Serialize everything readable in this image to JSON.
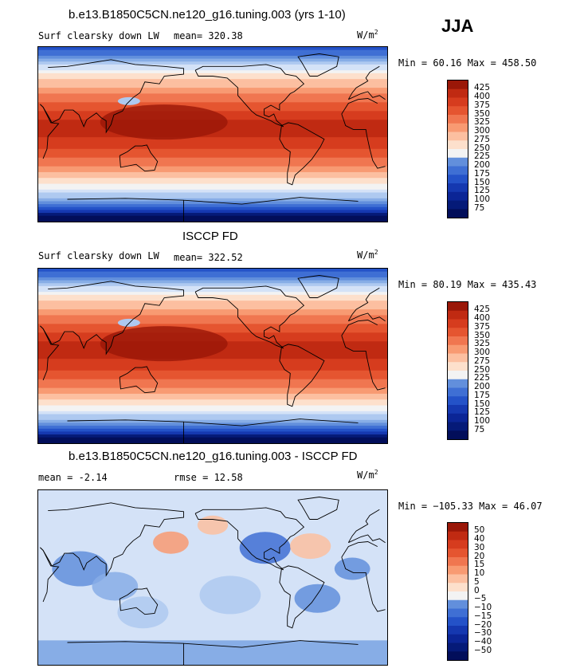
{
  "season": "JJA",
  "colors": {
    "warm": [
      "#fde0cc",
      "#fcbfa0",
      "#f89a72",
      "#f07650",
      "#e55530",
      "#d63c1e",
      "#c02a12",
      "#9a1708",
      "#7a0d04"
    ],
    "neutral": "#f3f3f3",
    "cool": [
      "#d4e2f7",
      "#aec9f0",
      "#87ade6",
      "#628fdc",
      "#3f6fd4",
      "#2452c8",
      "#1538b0",
      "#0b2596",
      "#051a78",
      "#020e5a"
    ]
  },
  "panels": [
    {
      "id": "model",
      "title": "b.e13.B1850C5CN.ne120_g16.tuning.003 (yrs 1-10)",
      "variable": "Surf clearsky down LW",
      "mean": "mean= 320.38",
      "units": "W/m",
      "units_exp": "2",
      "minmax": "Min =  60.16 Max = 458.50",
      "colorbar": [
        "425",
        "400",
        "375",
        "350",
        "325",
        "300",
        "275",
        "250",
        "225",
        "200",
        "175",
        "150",
        "125",
        "100",
        "75"
      ]
    },
    {
      "id": "obs",
      "title": "ISCCP FD",
      "variable": "Surf clearsky down LW",
      "mean": "mean= 322.52",
      "units": "W/m",
      "units_exp": "2",
      "minmax": "Min =  80.19 Max = 435.43",
      "colorbar": [
        "425",
        "400",
        "375",
        "350",
        "325",
        "300",
        "275",
        "250",
        "225",
        "200",
        "175",
        "150",
        "125",
        "100",
        "75"
      ]
    },
    {
      "id": "diff",
      "title": "b.e13.B1850C5CN.ne120_g16.tuning.003 - ISCCP FD",
      "mean": "mean =  -2.14",
      "rmse": "rmse =  12.58",
      "units": "W/m",
      "units_exp": "2",
      "minmax": "Min = −105.33 Max =  46.07",
      "colorbar": [
        "50",
        "40",
        "30",
        "20",
        "15",
        "10",
        "5",
        "0",
        "−5",
        "−10",
        "−15",
        "−20",
        "−30",
        "−40",
        "−50"
      ]
    }
  ],
  "chart_data": [
    {
      "type": "heatmap",
      "title": "b.e13.B1850C5CN.ne120_g16.tuning.003 (yrs 1-10)",
      "subtitle": "Surf clearsky down LW",
      "units": "W/m2",
      "season": "JJA",
      "mean": 320.38,
      "min": 60.16,
      "max": 458.5,
      "colorbar_levels": [
        75,
        100,
        125,
        150,
        175,
        200,
        225,
        250,
        275,
        300,
        325,
        350,
        375,
        400,
        425
      ]
    },
    {
      "type": "heatmap",
      "title": "ISCCP FD",
      "subtitle": "Surf clearsky down LW",
      "units": "W/m2",
      "mean": 322.52,
      "min": 80.19,
      "max": 435.43,
      "colorbar_levels": [
        75,
        100,
        125,
        150,
        175,
        200,
        225,
        250,
        275,
        300,
        325,
        350,
        375,
        400,
        425
      ]
    },
    {
      "type": "heatmap",
      "title": "b.e13.B1850C5CN.ne120_g16.tuning.003 - ISCCP FD",
      "units": "W/m2",
      "mean": -2.14,
      "rmse": 12.58,
      "min": -105.33,
      "max": 46.07,
      "colorbar_levels": [
        -50,
        -40,
        -30,
        -20,
        -15,
        -10,
        -5,
        0,
        5,
        10,
        15,
        20,
        30,
        40,
        50
      ]
    }
  ]
}
